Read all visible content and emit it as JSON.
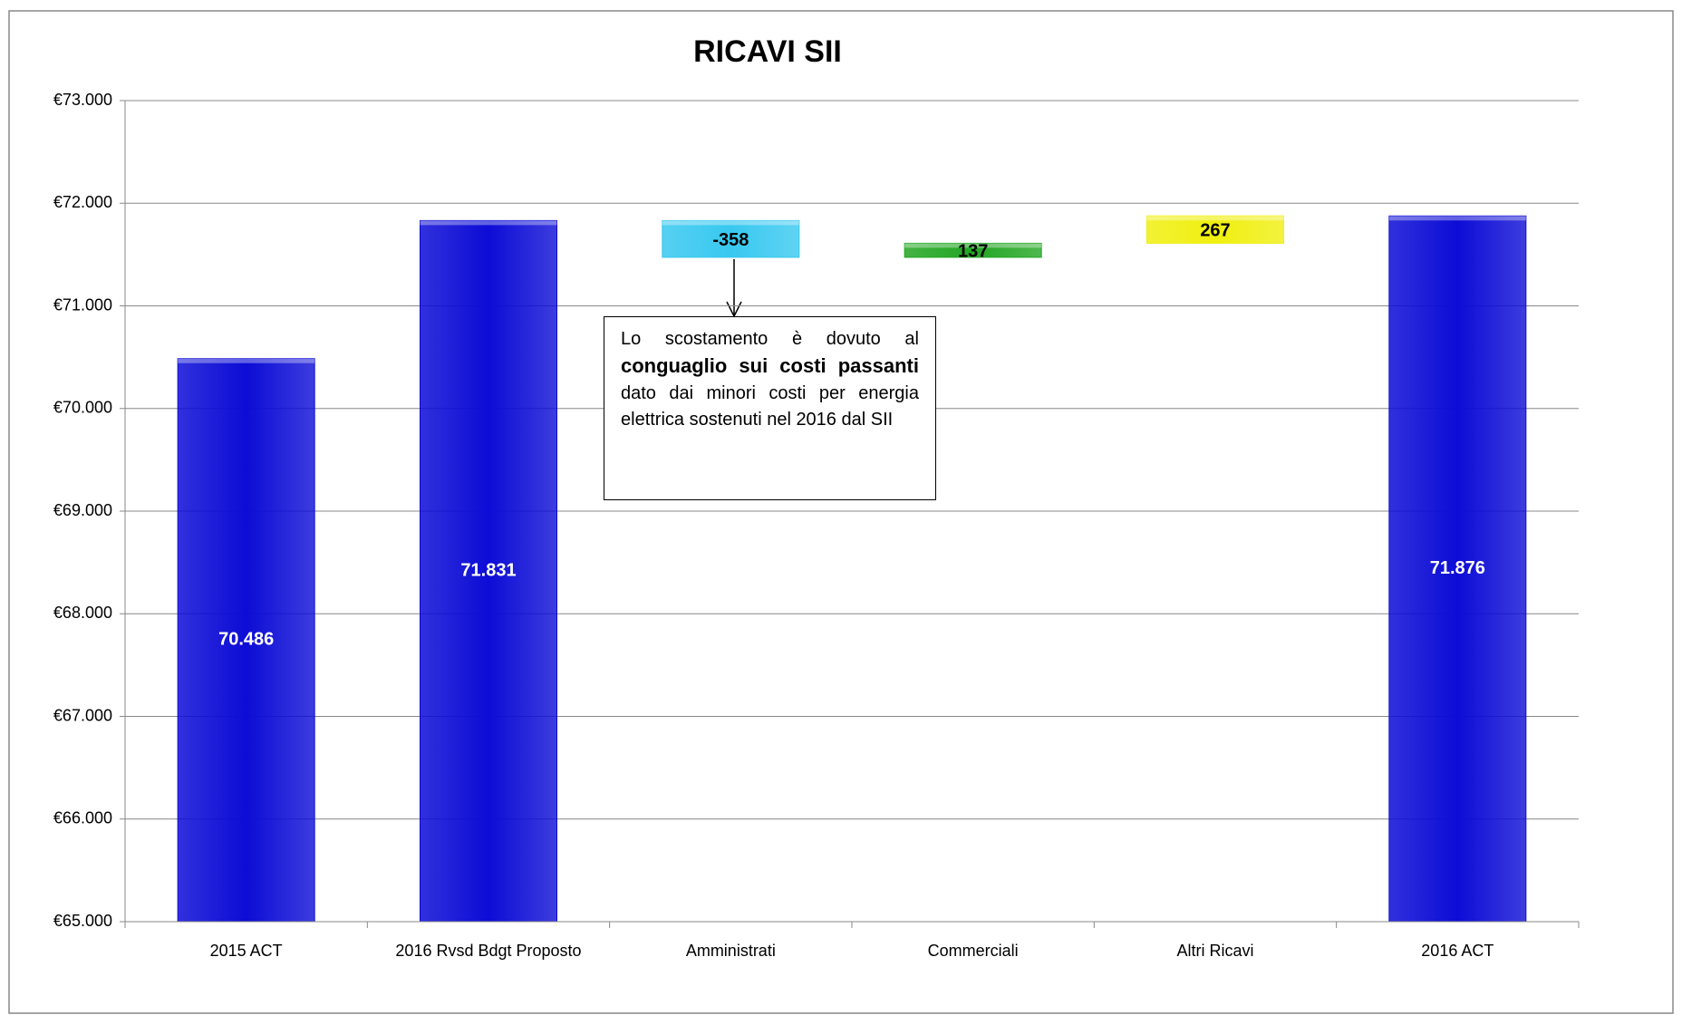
{
  "chart_data": {
    "type": "waterfall",
    "title": "RICAVI SII",
    "categories": [
      "2015 ACT",
      "2016 Rvsd Bdgt Proposto",
      "Amministrati",
      "Commerciali",
      "Altri Ricavi",
      "2016 ACT"
    ],
    "values": [
      70486,
      71831,
      -358,
      137,
      267,
      71876
    ],
    "value_labels": [
      "70.486",
      "71.831",
      "-358",
      "137",
      "267",
      "71.876"
    ],
    "measure": [
      "absolute",
      "absolute",
      "relative",
      "relative",
      "relative",
      "absolute"
    ],
    "colors": [
      "#0c0cd6",
      "#0c0cd6",
      "#38c8f0",
      "#22a622",
      "#f0ef10",
      "#0c0cd6"
    ],
    "ylim": [
      65000,
      73000
    ],
    "yticks": [
      {
        "value": 65000,
        "label": "€65.000"
      },
      {
        "value": 66000,
        "label": "€66.000"
      },
      {
        "value": 67000,
        "label": "€67.000"
      },
      {
        "value": 68000,
        "label": "€68.000"
      },
      {
        "value": 69000,
        "label": "€69.000"
      },
      {
        "value": 70000,
        "label": "€70.000"
      },
      {
        "value": 71000,
        "label": "€71.000"
      },
      {
        "value": 72000,
        "label": "€72.000"
      },
      {
        "value": 73000,
        "label": "€73.000"
      }
    ],
    "grid": true,
    "annotation": {
      "parts": [
        "Lo scostamento è dovuto al ",
        "conguaglio sui costi passanti",
        " dato dai minori costi per energia elettrica sostenuti nel 2016 dal SII"
      ]
    }
  }
}
